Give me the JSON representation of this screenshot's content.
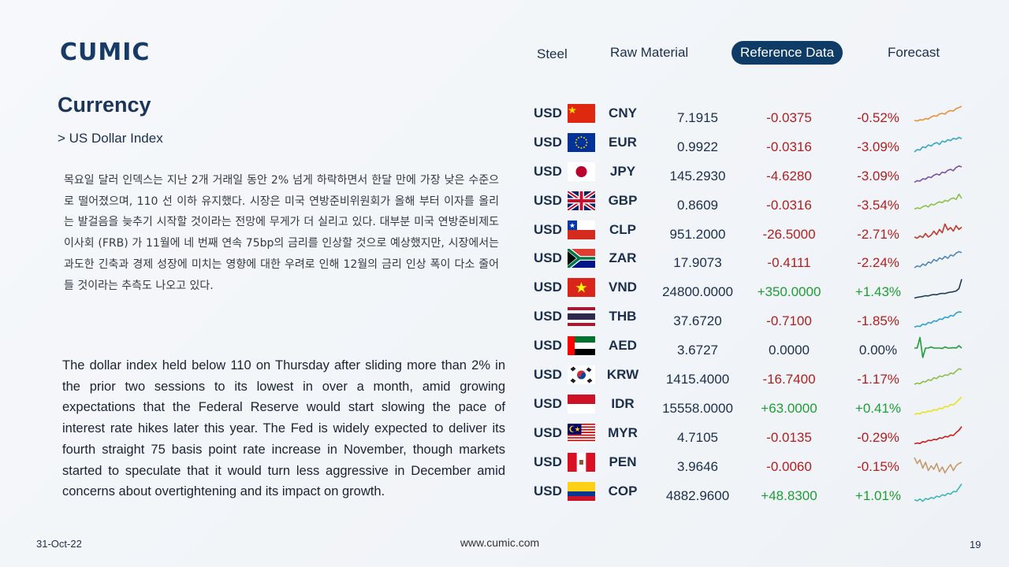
{
  "brand": {
    "logo": "CUMIC"
  },
  "nav": {
    "items": [
      "Steel",
      "Raw Material",
      "Reference Data",
      "Forecast"
    ],
    "active": "Reference Data"
  },
  "section": {
    "title": "Currency",
    "subtitle": "> US Dollar Index"
  },
  "content": {
    "korean": "목요일 달러 인덱스는 지난 2개 거래일 동안 2% 넘게 하락하면서 한달 만에 가장 낮은 수준으로 떨어졌으며, 110 선 이하 유지했다. 시장은 미국 연방준비위원회가 올해 부터 이자를 올리는 발걸음을 늦추기 시작할 것이라는 전망에 무게가 더 실리고 있다. 대부분 미국 연방준비제도이사회 (FRB) 가 11월에 네 번째 연속 75bp의 금리를 인상할 것으로 예상했지만, 시장에서는 과도한 긴축과 경제 성장에 미치는 영향에 대한 우려로 인해 12월의 금리 인상 폭이 다소 줄어들 것이라는 추측도 나오고 있다.",
    "english": "The dollar index held below 110 on Thursday after sliding more than 2% in the prior two sessions to its lowest in over a month, amid growing expectations that the Federal Reserve would start slowing the pace of interest rate hikes later this year. The Fed is widely expected to deliver its fourth straight 75 basis point rate increase in November, though markets started to speculate that it would turn less aggressive in December amid concerns about overtightening and its impact on growth."
  },
  "rates": [
    {
      "base": "USD",
      "quote": "CNY",
      "flag": "cn-flag",
      "rate": "7.1915",
      "change": "-0.0375",
      "pct": "-0.52%",
      "dir": "neg",
      "color": "#e8913a",
      "spark": [
        0.3,
        0.28,
        0.33,
        0.32,
        0.38,
        0.36,
        0.45,
        0.5,
        0.48,
        0.58,
        0.6,
        0.57,
        0.68,
        0.72,
        0.7,
        0.8,
        0.85,
        0.9
      ]
    },
    {
      "base": "USD",
      "quote": "EUR",
      "flag": "eu-flag",
      "rate": "0.9922",
      "change": "-0.0316",
      "pct": "-3.09%",
      "dir": "neg",
      "color": "#36a6c8",
      "spark": [
        0.2,
        0.3,
        0.28,
        0.42,
        0.38,
        0.5,
        0.45,
        0.55,
        0.6,
        0.52,
        0.66,
        0.62,
        0.72,
        0.68,
        0.78,
        0.74,
        0.82,
        0.76
      ]
    },
    {
      "base": "USD",
      "quote": "JPY",
      "flag": "jp-flag",
      "rate": "145.2930",
      "change": "-4.6280",
      "pct": "-3.09%",
      "dir": "neg",
      "color": "#7b52a6",
      "spark": [
        0.15,
        0.22,
        0.2,
        0.3,
        0.28,
        0.38,
        0.35,
        0.45,
        0.5,
        0.46,
        0.58,
        0.55,
        0.66,
        0.7,
        0.64,
        0.78,
        0.84,
        0.8
      ]
    },
    {
      "base": "USD",
      "quote": "GBP",
      "flag": "gb-flag",
      "rate": "0.8609",
      "change": "-0.0316",
      "pct": "-3.54%",
      "dir": "neg",
      "color": "#8dbf4a",
      "spark": [
        0.25,
        0.3,
        0.27,
        0.35,
        0.4,
        0.34,
        0.46,
        0.42,
        0.5,
        0.56,
        0.52,
        0.62,
        0.58,
        0.68,
        0.72,
        0.66,
        0.88,
        0.7
      ]
    },
    {
      "base": "USD",
      "quote": "CLP",
      "flag": "cl-flag",
      "rate": "951.2000",
      "change": "-26.5000",
      "pct": "-2.71%",
      "dir": "neg",
      "color": "#c0392b",
      "spark": [
        0.3,
        0.25,
        0.35,
        0.28,
        0.45,
        0.3,
        0.38,
        0.55,
        0.4,
        0.62,
        0.48,
        0.85,
        0.6,
        0.7,
        0.55,
        0.78,
        0.62,
        0.72
      ]
    },
    {
      "base": "USD",
      "quote": "ZAR",
      "flag": "za-flag",
      "rate": "17.9073",
      "change": "-0.4111",
      "pct": "-2.24%",
      "dir": "neg",
      "color": "#4f86b8",
      "spark": [
        0.2,
        0.28,
        0.24,
        0.36,
        0.3,
        0.44,
        0.4,
        0.55,
        0.48,
        0.62,
        0.56,
        0.68,
        0.6,
        0.74,
        0.7,
        0.82,
        0.88,
        0.84
      ]
    },
    {
      "base": "USD",
      "quote": "VND",
      "flag": "vn-flag",
      "rate": "24800.0000",
      "change": "+350.0000",
      "pct": "+1.43%",
      "dir": "pos",
      "color": "#1d3a5c",
      "spark": [
        0.15,
        0.18,
        0.2,
        0.22,
        0.25,
        0.24,
        0.28,
        0.3,
        0.29,
        0.33,
        0.35,
        0.34,
        0.38,
        0.4,
        0.42,
        0.45,
        0.55,
        0.95
      ]
    },
    {
      "base": "USD",
      "quote": "THB",
      "flag": "th-flag",
      "rate": "37.6720",
      "change": "-0.7100",
      "pct": "-1.85%",
      "dir": "neg",
      "color": "#2ba3cf",
      "spark": [
        0.15,
        0.2,
        0.18,
        0.28,
        0.25,
        0.35,
        0.32,
        0.42,
        0.4,
        0.5,
        0.48,
        0.58,
        0.55,
        0.65,
        0.62,
        0.75,
        0.8,
        0.78
      ]
    },
    {
      "base": "USD",
      "quote": "AED",
      "flag": "ae-flag",
      "rate": "3.6727",
      "change": "0.0000",
      "pct": "0.00%",
      "dir": "zero",
      "color": "#1f9d36",
      "spark": [
        0.5,
        0.5,
        0.95,
        0.1,
        0.5,
        0.5,
        0.55,
        0.5,
        0.5,
        0.5,
        0.48,
        0.55,
        0.5,
        0.5,
        0.52,
        0.5,
        0.6,
        0.5
      ]
    },
    {
      "base": "USD",
      "quote": "KRW",
      "flag": "kr-flag",
      "rate": "1415.4000",
      "change": "-16.7400",
      "pct": "-1.17%",
      "dir": "neg",
      "color": "#8dbf4a",
      "spark": [
        0.2,
        0.25,
        0.22,
        0.32,
        0.3,
        0.4,
        0.36,
        0.48,
        0.44,
        0.55,
        0.52,
        0.6,
        0.58,
        0.68,
        0.64,
        0.76,
        0.86,
        0.82
      ]
    },
    {
      "base": "USD",
      "quote": "IDR",
      "flag": "id-flag",
      "rate": "15558.0000",
      "change": "+63.0000",
      "pct": "+0.41%",
      "dir": "pos",
      "color": "#e8e21a",
      "spark": [
        0.15,
        0.2,
        0.18,
        0.26,
        0.24,
        0.3,
        0.28,
        0.36,
        0.34,
        0.42,
        0.4,
        0.5,
        0.48,
        0.58,
        0.56,
        0.66,
        0.78,
        0.9
      ]
    },
    {
      "base": "USD",
      "quote": "MYR",
      "flag": "my-flag",
      "rate": "4.7105",
      "change": "-0.0135",
      "pct": "-0.29%",
      "dir": "neg",
      "color": "#c81e1e",
      "spark": [
        0.15,
        0.18,
        0.16,
        0.24,
        0.22,
        0.3,
        0.28,
        0.34,
        0.32,
        0.4,
        0.38,
        0.46,
        0.44,
        0.52,
        0.5,
        0.62,
        0.72,
        0.88
      ]
    },
    {
      "base": "USD",
      "quote": "PEN",
      "flag": "pe-flag",
      "rate": "3.9646",
      "change": "-0.0060",
      "pct": "-0.15%",
      "dir": "neg",
      "color": "#c49a6c",
      "spark": [
        0.8,
        0.55,
        0.7,
        0.35,
        0.6,
        0.25,
        0.45,
        0.3,
        0.55,
        0.2,
        0.4,
        0.15,
        0.35,
        0.5,
        0.25,
        0.45,
        0.55,
        0.6
      ]
    },
    {
      "base": "USD",
      "quote": "COP",
      "flag": "co-flag",
      "rate": "4882.9600",
      "change": "+48.8300",
      "pct": "+1.01%",
      "dir": "pos",
      "color": "#3fb5b5",
      "spark": [
        0.25,
        0.2,
        0.28,
        0.18,
        0.3,
        0.26,
        0.34,
        0.3,
        0.4,
        0.36,
        0.46,
        0.42,
        0.52,
        0.48,
        0.6,
        0.58,
        0.75,
        0.92
      ]
    }
  ],
  "footer": {
    "date": "31-Oct-22",
    "url": "www.cumic.com",
    "page": "19"
  }
}
